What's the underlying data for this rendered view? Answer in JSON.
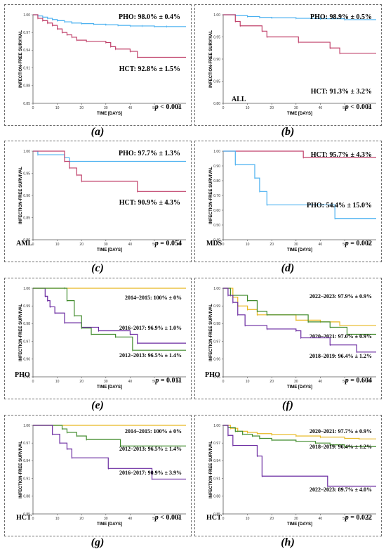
{
  "colors": {
    "blue": "#4ab0f0",
    "red": "#c0406a",
    "yellow": "#e8b820",
    "green": "#3f8a2a",
    "purple": "#6a2aa0",
    "axis": "#555555"
  },
  "chart_data": [
    {
      "id": "a",
      "caption": "(a)",
      "type": "line",
      "ylabel": "INFECTION-FREE SURVIVAL",
      "xlabel": "TIME [DAYS]",
      "xlim": [
        0,
        63
      ],
      "ylim": [
        0.85,
        1.0
      ],
      "xticks": [
        "0",
        "10",
        "20",
        "30",
        "40",
        "50",
        "60"
      ],
      "yticks": [
        "0.85",
        "0.88",
        "0.91",
        "0.94",
        "0.97",
        "1.00"
      ],
      "group": "",
      "p_label": "p",
      "p_value": "< 0.001",
      "series": [
        {
          "name": "PHO",
          "color_key": "blue",
          "annotation": "PHO: 98.0% ± 0.4%",
          "x": [
            0,
            2,
            4,
            6,
            8,
            10,
            13,
            16,
            20,
            25,
            30,
            35,
            40,
            45,
            50,
            55,
            63
          ],
          "y": [
            1.0,
            0.998,
            0.996,
            0.994,
            0.992,
            0.99,
            0.988,
            0.986,
            0.985,
            0.984,
            0.983,
            0.982,
            0.981,
            0.981,
            0.98,
            0.98,
            0.98
          ]
        },
        {
          "name": "HCT",
          "color_key": "red",
          "annotation": "HCT: 92.8% ± 1.5%",
          "x": [
            0,
            2,
            4,
            6,
            8,
            10,
            12,
            14,
            16,
            18,
            22,
            30,
            32,
            34,
            40,
            43,
            63
          ],
          "y": [
            1.0,
            0.994,
            0.99,
            0.986,
            0.982,
            0.976,
            0.97,
            0.966,
            0.962,
            0.957,
            0.955,
            0.953,
            0.946,
            0.942,
            0.938,
            0.928,
            0.928
          ]
        }
      ]
    },
    {
      "id": "b",
      "caption": "(b)",
      "type": "line",
      "ylabel": "INFECTION-FREE SURVIVAL",
      "xlabel": "TIME [DAYS]",
      "xlim": [
        0,
        63
      ],
      "ylim": [
        0.8,
        1.0
      ],
      "xticks": [
        "0",
        "10",
        "20",
        "30",
        "40",
        "50",
        "60"
      ],
      "yticks": [
        "0.80",
        "0.85",
        "0.90",
        "0.95",
        "1.00"
      ],
      "group": "ALL",
      "p_label": "p",
      "p_value": "< 0.001",
      "series": [
        {
          "name": "PHO",
          "color_key": "blue",
          "annotation": "PHO: 98.9% ± 0.5%",
          "x": [
            0,
            5,
            10,
            15,
            20,
            30,
            40,
            50,
            63
          ],
          "y": [
            1.0,
            0.998,
            0.996,
            0.994,
            0.993,
            0.992,
            0.991,
            0.989,
            0.989
          ]
        },
        {
          "name": "HCT",
          "color_key": "red",
          "annotation": "HCT: 91.3% ± 3.2%",
          "x": [
            0,
            5,
            7,
            16,
            18,
            31,
            44,
            48,
            63
          ],
          "y": [
            1.0,
            0.985,
            0.975,
            0.963,
            0.95,
            0.938,
            0.925,
            0.913,
            0.913
          ]
        }
      ]
    },
    {
      "id": "c",
      "caption": "(c)",
      "type": "line",
      "ylabel": "INFECTION-FREE SURVIVAL",
      "xlabel": "TIME [DAYS]",
      "xlim": [
        0,
        63
      ],
      "ylim": [
        0.8,
        1.0
      ],
      "xticks": [
        "0",
        "10",
        "20",
        "30",
        "40",
        "50",
        "60"
      ],
      "yticks": [
        "0.80",
        "0.85",
        "0.90",
        "0.95",
        "1.00"
      ],
      "group": "AML",
      "p_label": "p",
      "p_value": "= 0.054",
      "series": [
        {
          "name": "PHO",
          "color_key": "blue",
          "annotation": "PHO: 97.7% ± 1.3%",
          "x": [
            0,
            2,
            13,
            15,
            63
          ],
          "y": [
            1.0,
            0.992,
            0.985,
            0.977,
            0.977
          ]
        },
        {
          "name": "HCT",
          "color_key": "red",
          "annotation": "HCT: 90.9% ± 4.3%",
          "x": [
            0,
            13,
            15,
            18,
            20,
            43,
            63
          ],
          "y": [
            1.0,
            0.977,
            0.962,
            0.946,
            0.932,
            0.909,
            0.909
          ]
        }
      ]
    },
    {
      "id": "d",
      "caption": "(d)",
      "type": "line",
      "ylabel": "INFECTION-FREE SURVIVAL",
      "xlabel": "TIME [DAYS]",
      "xlim": [
        0,
        63
      ],
      "ylim": [
        0.4,
        1.0
      ],
      "xticks": [
        "0",
        "10",
        "20",
        "30",
        "40",
        "50",
        "60"
      ],
      "yticks": [
        "0.40",
        "0.50",
        "0.60",
        "0.70",
        "0.80",
        "0.90",
        "1.00"
      ],
      "group": "MDS",
      "p_label": "p",
      "p_value": "= 0.002",
      "series": [
        {
          "name": "HCT",
          "color_key": "red",
          "annotation": "HCT: 95.7% ± 4.3%",
          "x": [
            0,
            33,
            63
          ],
          "y": [
            1.0,
            0.957,
            0.957
          ]
        },
        {
          "name": "PHO",
          "color_key": "blue",
          "annotation": "PHO: 54.4% ± 15.0%",
          "x": [
            0,
            5,
            13,
            15,
            18,
            46,
            63
          ],
          "y": [
            1.0,
            0.909,
            0.818,
            0.727,
            0.636,
            0.544,
            0.544
          ]
        }
      ]
    },
    {
      "id": "e",
      "caption": "(e)",
      "type": "line",
      "ylabel": "INFECTION-FREE SURVIVAL",
      "xlabel": "TIME [DAYS]",
      "xlim": [
        0,
        63
      ],
      "ylim": [
        0.95,
        1.0
      ],
      "xticks": [
        "0",
        "10",
        "20",
        "30",
        "40",
        "50",
        "60"
      ],
      "yticks": [
        "0.95",
        "0.96",
        "0.97",
        "0.98",
        "0.99",
        "1.00"
      ],
      "group": "PHO",
      "p_label": "p",
      "p_value": "= 0.011",
      "series": [
        {
          "name": "2014–2015",
          "color_key": "yellow",
          "annotation": "2014–2015: 100% ± 0%",
          "x": [
            0,
            63
          ],
          "y": [
            1.0,
            1.0
          ]
        },
        {
          "name": "2016–2017",
          "color_key": "purple",
          "annotation": "2016–2017: 96.9% ± 1.0%",
          "x": [
            0,
            5,
            6,
            7,
            9,
            13,
            20,
            27,
            40,
            43,
            63
          ],
          "y": [
            1.0,
            0.9955,
            0.993,
            0.9895,
            0.986,
            0.9805,
            0.978,
            0.976,
            0.974,
            0.969,
            0.969
          ]
        },
        {
          "name": "2012–2013",
          "color_key": "green",
          "annotation": "2012–2013: 96.5% ± 1.4%",
          "x": [
            0,
            13,
            14,
            17,
            20,
            24,
            34,
            41,
            63
          ],
          "y": [
            1.0,
            1.0,
            0.993,
            0.9845,
            0.9775,
            0.974,
            0.9725,
            0.965,
            0.965
          ]
        }
      ]
    },
    {
      "id": "f",
      "caption": "(f)",
      "type": "line",
      "ylabel": "INFECTION-FREE SURVIVAL",
      "xlabel": "TIME [DAYS]",
      "xlim": [
        0,
        63
      ],
      "ylim": [
        0.95,
        1.0
      ],
      "xticks": [
        "0",
        "10",
        "20",
        "30",
        "40",
        "50",
        "60"
      ],
      "yticks": [
        "0.95",
        "0.96",
        "0.97",
        "0.98",
        "0.99",
        "1.00"
      ],
      "group": "PHO",
      "p_label": "p",
      "p_value": "= 0.604",
      "series": [
        {
          "name": "2022–2023",
          "color_key": "yellow",
          "annotation": "2022–2023: 97.9% ± 0.9%",
          "x": [
            0,
            4,
            6,
            10,
            14,
            30,
            40,
            48,
            63
          ],
          "y": [
            1.0,
            0.995,
            0.99,
            0.988,
            0.985,
            0.982,
            0.981,
            0.979,
            0.979
          ]
        },
        {
          "name": "2020–2021",
          "color_key": "green",
          "annotation": "2020–2021: 97.0% ± 0.9%",
          "x": [
            0,
            3,
            10,
            14,
            18,
            35,
            44,
            51,
            63
          ],
          "y": [
            1.0,
            0.996,
            0.993,
            0.987,
            0.985,
            0.981,
            0.978,
            0.974,
            0.974
          ]
        },
        {
          "name": "2018–2019",
          "color_key": "purple",
          "annotation": "2018–2019: 96.4% ± 1.2%",
          "x": [
            0,
            2,
            4,
            6,
            9,
            18,
            30,
            32,
            44,
            55,
            63
          ],
          "y": [
            1.0,
            0.996,
            0.992,
            0.985,
            0.979,
            0.977,
            0.976,
            0.972,
            0.968,
            0.964,
            0.964
          ]
        }
      ]
    },
    {
      "id": "g",
      "caption": "(g)",
      "type": "line",
      "ylabel": "INFECTION-FREE SURVIVAL",
      "xlabel": "TIME [DAYS]",
      "xlim": [
        0,
        63
      ],
      "ylim": [
        0.85,
        1.0
      ],
      "xticks": [
        "0",
        "10",
        "20",
        "30",
        "40",
        "50",
        "60"
      ],
      "yticks": [
        "0.85",
        "0.88",
        "0.91",
        "0.94",
        "0.97",
        "1.00"
      ],
      "group": "HCT",
      "p_label": "p",
      "p_value": "< 0.001",
      "series": [
        {
          "name": "2014–2015",
          "color_key": "yellow",
          "annotation": "2014–2015: 100% ± 0%",
          "x": [
            0,
            63
          ],
          "y": [
            1.0,
            1.0
          ]
        },
        {
          "name": "2012–2013",
          "color_key": "green",
          "annotation": "2012–2013: 96.5% ± 1.4%",
          "x": [
            0,
            12,
            14,
            18,
            22,
            36,
            63
          ],
          "y": [
            1.0,
            0.994,
            0.988,
            0.982,
            0.976,
            0.965,
            0.965
          ]
        },
        {
          "name": "2016–2017",
          "color_key": "purple",
          "annotation": "2016–2017: 90.9% ± 3.9%",
          "x": [
            0,
            8,
            11,
            14,
            16,
            31,
            49,
            63
          ],
          "y": [
            1.0,
            0.985,
            0.97,
            0.96,
            0.945,
            0.927,
            0.909,
            0.909
          ]
        }
      ]
    },
    {
      "id": "h",
      "caption": "(h)",
      "type": "line",
      "ylabel": "INFECTION-FREE SURVIVAL",
      "xlabel": "TIME [DAYS]",
      "xlim": [
        0,
        63
      ],
      "ylim": [
        0.85,
        1.0
      ],
      "xticks": [
        "0",
        "10",
        "20",
        "30",
        "40",
        "50",
        "60"
      ],
      "yticks": [
        "0.85",
        "0.88",
        "0.91",
        "0.94",
        "0.97",
        "1.00"
      ],
      "group": "HCT",
      "p_label": "p",
      "p_value": "= 0.022",
      "series": [
        {
          "name": "2020–2021",
          "color_key": "yellow",
          "annotation": "2020–2021: 97.7% ± 0.9%",
          "x": [
            0,
            3,
            6,
            10,
            14,
            20,
            30,
            40,
            50,
            56,
            63
          ],
          "y": [
            1.0,
            0.995,
            0.99,
            0.988,
            0.986,
            0.984,
            0.982,
            0.98,
            0.978,
            0.977,
            0.977
          ]
        },
        {
          "name": "2018–2019",
          "color_key": "green",
          "annotation": "2018–2019: 96.4% ± 1.2%",
          "x": [
            0,
            2,
            5,
            8,
            12,
            15,
            20,
            30,
            38,
            44,
            50,
            63
          ],
          "y": [
            1.0,
            0.996,
            0.99,
            0.985,
            0.982,
            0.978,
            0.975,
            0.973,
            0.97,
            0.967,
            0.964,
            0.964
          ]
        },
        {
          "name": "2022–2023",
          "color_key": "purple",
          "annotation": "2022–2023: 89.7% ± 4.0%",
          "x": [
            0,
            2,
            4,
            14,
            16,
            43,
            63
          ],
          "y": [
            1.0,
            0.983,
            0.966,
            0.948,
            0.914,
            0.897,
            0.897
          ]
        }
      ]
    }
  ]
}
